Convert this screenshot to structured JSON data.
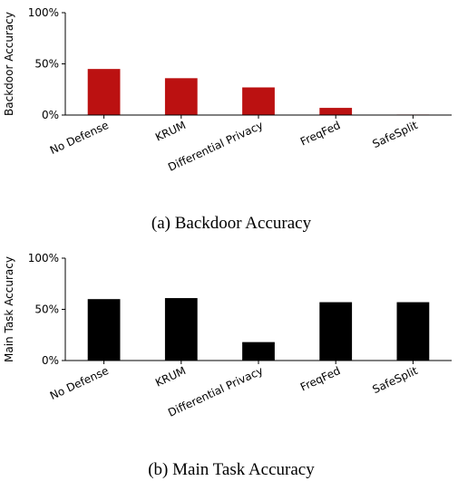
{
  "chart_data": [
    {
      "type": "bar",
      "caption": "(a) Backdoor Accuracy",
      "ylabel": "Backdoor Accuracy",
      "xlabel": "",
      "categories": [
        "No Defense",
        "KRUM",
        "Differential Privacy",
        "FreqFed",
        "SafeSplit"
      ],
      "values": [
        45,
        36,
        27,
        7,
        0.5
      ],
      "ylim": [
        0,
        100
      ],
      "yticks": [
        0,
        50,
        100
      ],
      "ytick_labels": [
        "0%",
        "50%",
        "100%"
      ],
      "bar_color": "#bb1111",
      "grid": false
    },
    {
      "type": "bar",
      "caption": "(b) Main Task Accuracy",
      "ylabel": "Main Task Accuracy",
      "xlabel": "",
      "categories": [
        "No Defense",
        "KRUM",
        "Differential Privacy",
        "FreqFed",
        "SafeSplit"
      ],
      "values": [
        60,
        61,
        18,
        57,
        57
      ],
      "ylim": [
        0,
        100
      ],
      "yticks": [
        0,
        50,
        100
      ],
      "ytick_labels": [
        "0%",
        "50%",
        "100%"
      ],
      "bar_color": "#000000",
      "grid": false
    }
  ]
}
